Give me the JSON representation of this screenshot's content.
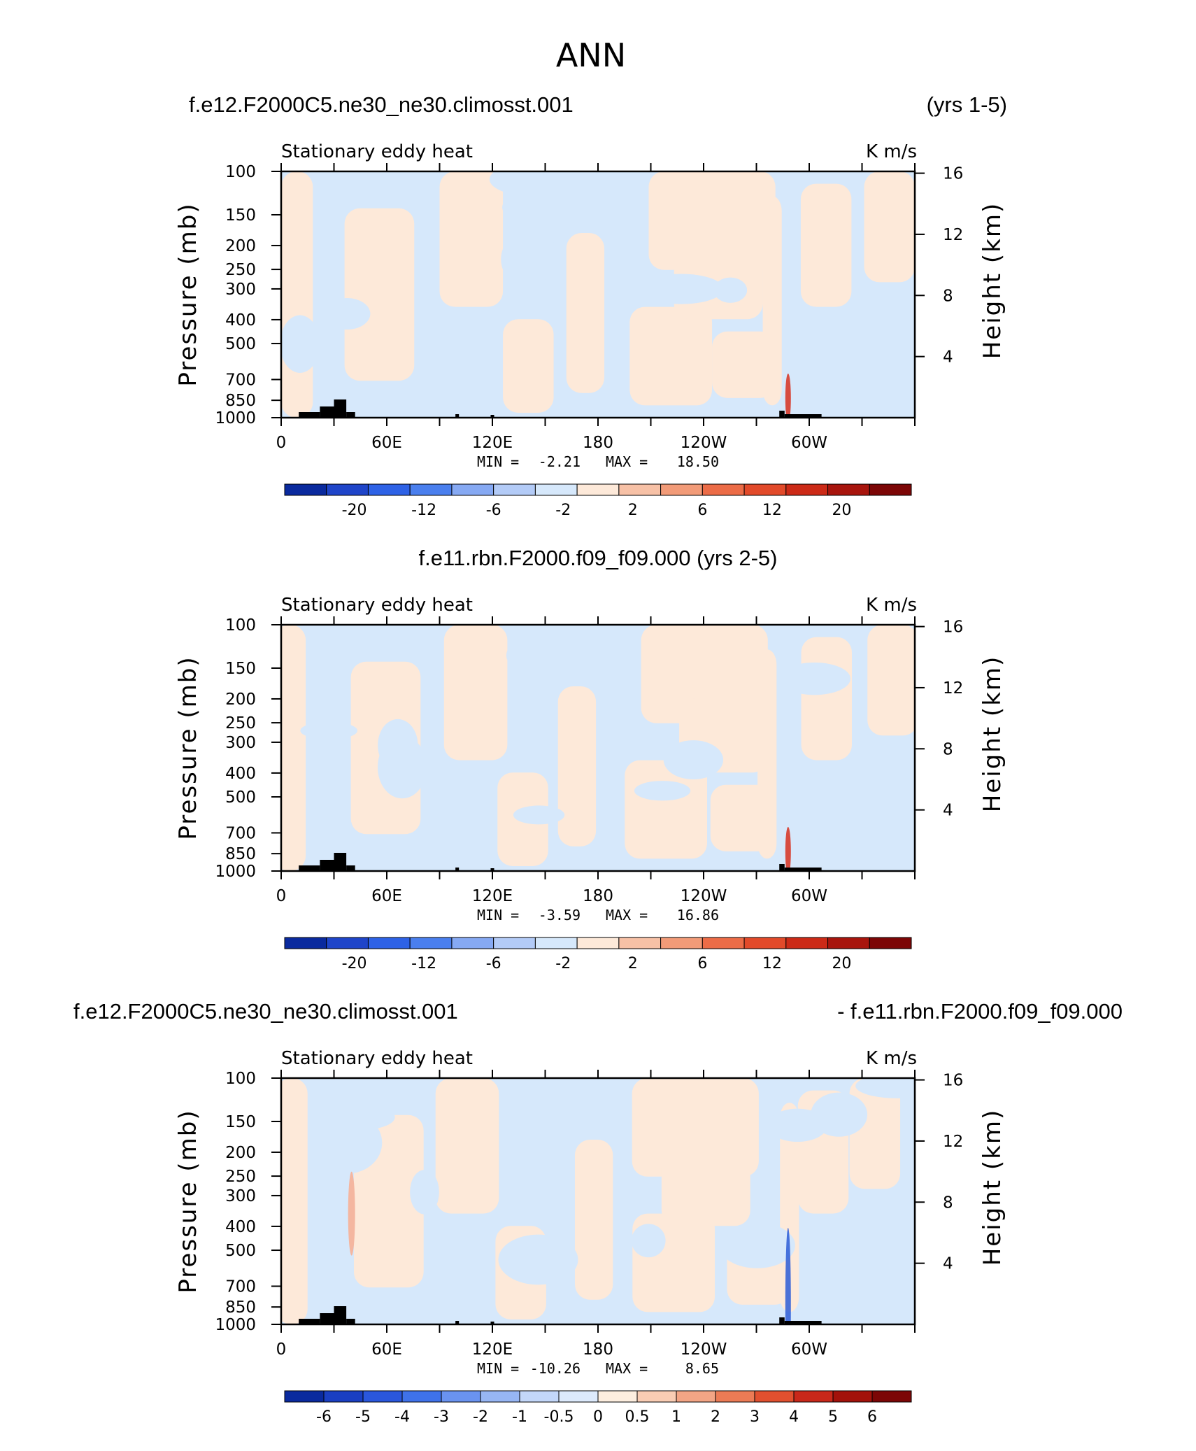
{
  "figure_title": "ANN",
  "colors": {
    "pos_weak": "#fde9d9",
    "neg_weak": "#d6e8fb",
    "topo": "#000000",
    "strong_pos": "#d7301f",
    "strong_neg": "#2b5cd6"
  },
  "chart_data": [
    {
      "type": "heatmap",
      "title_left": "f.e12.F2000C5.ne30_ne30.climosst.001",
      "title_right": "(yrs 1-5)",
      "subtitle_left": "Stationary eddy heat",
      "subtitle_right": "K m/s",
      "ylabel_left": "Pressure (mb)",
      "ylabel_right": "Height (km)",
      "x_ticks": [
        "0",
        "60E",
        "120E",
        "180",
        "120W",
        "60W"
      ],
      "y_ticks": [
        "100",
        "150",
        "200",
        "250",
        "300",
        "400",
        "500",
        "700",
        "850",
        "1000"
      ],
      "y_ticks_right": [
        "16",
        "12",
        "8",
        "4"
      ],
      "min_label": "MIN =",
      "min_value": "-2.21",
      "max_label": "MAX =",
      "max_value": "18.50",
      "colorbar_labels": [
        "-20",
        "-12",
        "-6",
        "-2",
        "2",
        "6",
        "12",
        "20"
      ],
      "colorbar_colors": [
        "#0a2a9e",
        "#1f45c9",
        "#2e62e6",
        "#4a7fee",
        "#86a9f3",
        "#b3cbf7",
        "#d6e8fb",
        "#fde9d9",
        "#f7c1a6",
        "#f29b78",
        "#ec6c47",
        "#e24a2a",
        "#cc2a17",
        "#a8150d",
        "#7c0606"
      ]
    },
    {
      "type": "heatmap",
      "title_left": "f.e11.rbn.F2000.f09_f09.000 (yrs 2-5)",
      "title_right": "",
      "subtitle_left": "Stationary eddy heat",
      "subtitle_right": "K m/s",
      "ylabel_left": "Pressure (mb)",
      "ylabel_right": "Height (km)",
      "x_ticks": [
        "0",
        "60E",
        "120E",
        "180",
        "120W",
        "60W"
      ],
      "y_ticks": [
        "100",
        "150",
        "200",
        "250",
        "300",
        "400",
        "500",
        "700",
        "850",
        "1000"
      ],
      "y_ticks_right": [
        "16",
        "12",
        "8",
        "4"
      ],
      "min_label": "MIN =",
      "min_value": "-3.59",
      "max_label": "MAX =",
      "max_value": "16.86",
      "colorbar_labels": [
        "-20",
        "-12",
        "-6",
        "-2",
        "2",
        "6",
        "12",
        "20"
      ],
      "colorbar_colors": [
        "#0a2a9e",
        "#1f45c9",
        "#2e62e6",
        "#4a7fee",
        "#86a9f3",
        "#b3cbf7",
        "#d6e8fb",
        "#fde9d9",
        "#f7c1a6",
        "#f29b78",
        "#ec6c47",
        "#e24a2a",
        "#cc2a17",
        "#a8150d",
        "#7c0606"
      ]
    },
    {
      "type": "heatmap",
      "title_left": "f.e12.F2000C5.ne30_ne30.climosst.001",
      "title_right": "- f.e11.rbn.F2000.f09_f09.000",
      "subtitle_left": "Stationary eddy heat",
      "subtitle_right": "K m/s",
      "ylabel_left": "Pressure (mb)",
      "ylabel_right": "Height (km)",
      "x_ticks": [
        "0",
        "60E",
        "120E",
        "180",
        "120W",
        "60W"
      ],
      "y_ticks": [
        "100",
        "150",
        "200",
        "250",
        "300",
        "400",
        "500",
        "700",
        "850",
        "1000"
      ],
      "y_ticks_right": [
        "16",
        "12",
        "8",
        "4"
      ],
      "min_label": "MIN =",
      "min_value": "-10.26",
      "max_label": "MAX =",
      "max_value": "8.65",
      "colorbar_labels": [
        "-6",
        "-5",
        "-4",
        "-3",
        "-2",
        "-1",
        "-0.5",
        "0",
        "0.5",
        "1",
        "2",
        "3",
        "4",
        "5",
        "6"
      ],
      "colorbar_colors": [
        "#0a2a9e",
        "#1a3fc2",
        "#2a57dd",
        "#3f72ea",
        "#6a93f0",
        "#97b6f4",
        "#c3d7f9",
        "#ddeafc",
        "#fdeedf",
        "#f9cdb4",
        "#f3a585",
        "#ec7b55",
        "#e1502f",
        "#c9281a",
        "#a3120b",
        "#7c0606"
      ]
    }
  ]
}
